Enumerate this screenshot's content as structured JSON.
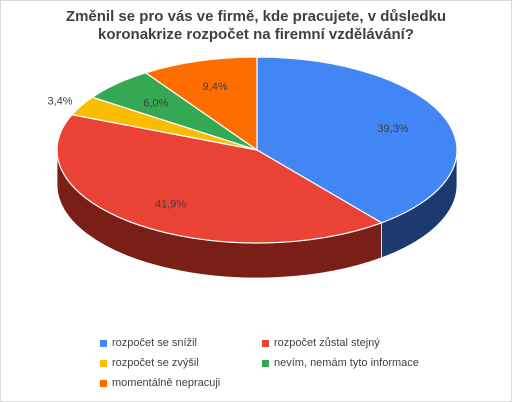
{
  "chart_data": {
    "type": "pie",
    "title_lines": [
      "Změnil se pro vás ve firmě, kde pracujete, v důsledku",
      "koronakrize rozpočet na firemní vzdělávání?"
    ],
    "categories": [
      "rozpočet se snížil",
      "rozpočet zůstal stejný",
      "rozpočet se zvýšil",
      "nevím, nemám tyto informace",
      "momentálně nepracuji"
    ],
    "values": [
      39.3,
      41.9,
      3.4,
      6.0,
      9.4
    ],
    "labels": [
      "39,3%",
      "41,9%",
      "3,4%",
      "6,0%",
      "9,4%"
    ],
    "colors": [
      "#4285F4",
      "#EA4335",
      "#FBBC04",
      "#34A853",
      "#FF6D01"
    ],
    "side_colors": [
      "#1C3A6E",
      "#7A1F17",
      "#8A6500",
      "#1B5A2C",
      "#8A3A00"
    ],
    "style": "3d",
    "legend_position": "bottom"
  }
}
